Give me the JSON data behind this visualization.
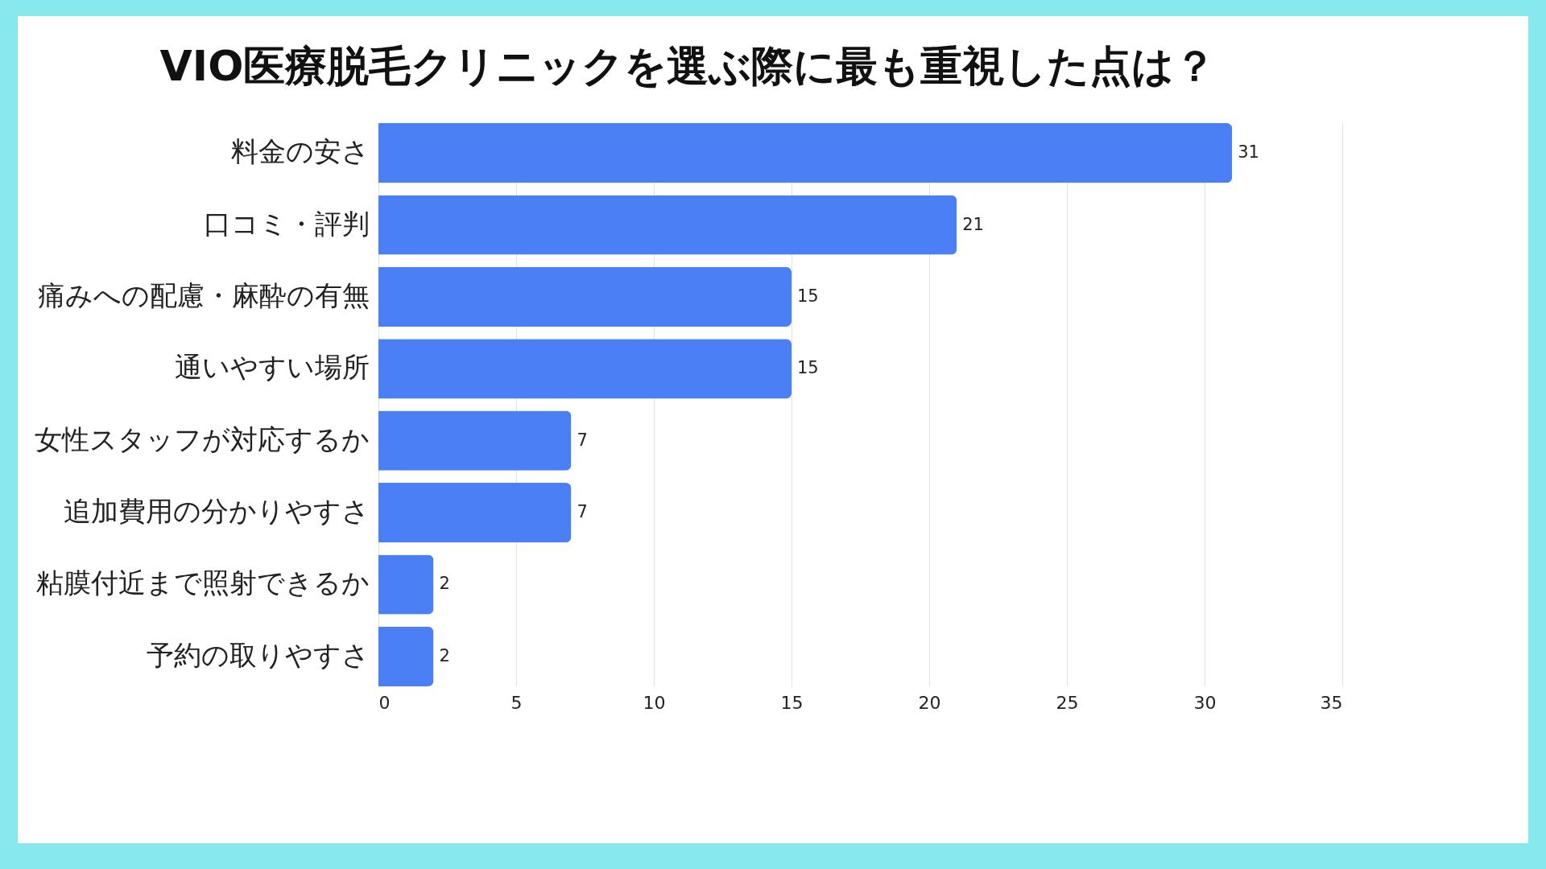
{
  "chart_data": {
    "type": "bar",
    "orientation": "horizontal",
    "title": "VIO医療脱毛クリニックを選ぶ際に最も重視した点は？",
    "categories": [
      "料金の安さ",
      "口コミ・評判",
      "痛みへの配慮・麻酔の有無",
      "通いやすい場所",
      "女性スタッフが対応するか",
      "追加費用の分かりやすさ",
      "粘膜付近まで照射できるか",
      "予約の取りやすさ"
    ],
    "values": [
      31,
      21,
      15,
      15,
      7,
      7,
      2,
      2
    ],
    "color": "#4a7ff5",
    "xlim": [
      0,
      35
    ],
    "xticks": [
      0,
      5,
      10,
      15,
      20,
      25,
      30,
      35
    ],
    "grid": "x",
    "data_labels": true
  }
}
